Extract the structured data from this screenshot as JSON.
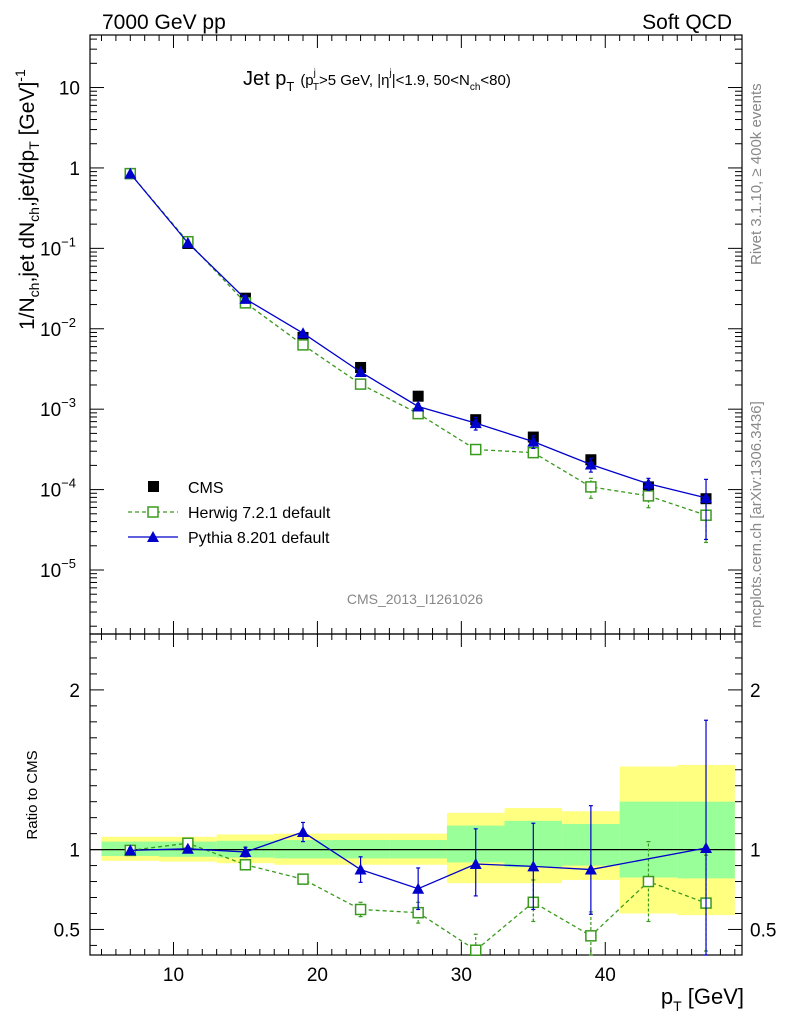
{
  "header": {
    "left_label": "7000 GeV pp",
    "right_label": "Soft QCD"
  },
  "side_labels": {
    "rivet": "Rivet 3.1.10, ≥ 400k events",
    "mcplots": "mcplots.cern.ch [arXiv:1306.3436]"
  },
  "analysis_tag": "CMS_2013_I1261026",
  "chart_data": [
    {
      "type": "scatter",
      "panel": "main",
      "title_parts": {
        "main": "Jet p",
        "main_sub": "T",
        "cut1": "(p",
        "cut1_sup": "j",
        "cut1_sub": "T",
        "cut2": ">5 GeV, |η",
        "cut2_sup": "j",
        "cut3": "|<1.9, 50<N",
        "cut3_sub": "ch",
        "cut4": "<80)"
      },
      "ylabel_parts": {
        "a": "1/N",
        "a_sub": "ch",
        "b": ",jet dN",
        "b_sub": "ch",
        "c": ",jet/dp",
        "c_sub": "T",
        "d": " [GeV]",
        "d_sup": "-1"
      },
      "yscale": "log",
      "xlim": [
        4.2,
        49.5
      ],
      "ylim": [
        1.6e-06,
        45
      ],
      "y_ticks": [
        {
          "v": 10,
          "base": "10",
          "exp": ""
        },
        {
          "v": 1,
          "base": "1",
          "exp": ""
        },
        {
          "v": 0.1,
          "base": "10",
          "exp": "−1"
        },
        {
          "v": 0.01,
          "base": "10",
          "exp": "−2"
        },
        {
          "v": 0.001,
          "base": "10",
          "exp": "−3"
        },
        {
          "v": 0.0001,
          "base": "10",
          "exp": "−4"
        },
        {
          "v": 1e-05,
          "base": "10",
          "exp": "−5"
        }
      ],
      "x": [
        7,
        11,
        15,
        19,
        23,
        27,
        31,
        35,
        39,
        43,
        47
      ],
      "series": [
        {
          "name": "CMS",
          "color": "#000000",
          "marker": "filled-square",
          "y": [
            0.85,
            0.115,
            0.024,
            0.0078,
            0.0033,
            0.00145,
            0.00074,
            0.00045,
            0.000235,
            0.000108,
            7.7e-05
          ]
        },
        {
          "name": "Herwig 7.2.1 default",
          "color": "#3a9a1e",
          "marker": "open-square",
          "line": "dashed",
          "y": [
            0.85,
            0.121,
            0.021,
            0.0063,
            0.00205,
            0.00088,
            0.000315,
            0.000288,
            0.000108,
            8.35e-05,
            4.8e-05
          ],
          "yerr_lo": [
            0,
            0,
            0,
            0,
            0,
            0,
            0,
            0,
            3e-05,
            2.4e-05,
            2.6e-05
          ],
          "yerr_hi": [
            0,
            0,
            0,
            0,
            0,
            0,
            0,
            0,
            3e-05,
            2.4e-05,
            2.6e-05
          ]
        },
        {
          "name": "Pythia 8.201 default",
          "color": "#0000cc",
          "marker": "filled-triangle",
          "line": "solid",
          "y": [
            0.85,
            0.117,
            0.0235,
            0.0088,
            0.0029,
            0.00108,
            0.00067,
            0.000395,
            0.000205,
            0.000118,
            7.9e-05
          ],
          "yerr_lo": [
            0,
            0,
            0,
            0,
            0,
            0.0001,
            0.00012,
            7e-05,
            4e-05,
            2e-05,
            5.5e-05
          ],
          "yerr_hi": [
            0,
            0,
            0,
            0,
            0,
            0.0001,
            0.00012,
            7e-05,
            4e-05,
            2e-05,
            5.5e-05
          ]
        }
      ],
      "legend_position": "lower-left"
    },
    {
      "type": "scatter",
      "panel": "ratio",
      "ylabel": "Ratio to CMS",
      "xlabel_parts": {
        "a": "p",
        "a_sub": "T",
        "b": " [GeV]"
      },
      "yscale": "linear",
      "xlim": [
        4.2,
        49.5
      ],
      "ylim": [
        0.34,
        2.35
      ],
      "x_ticks": [
        10,
        20,
        30,
        40
      ],
      "y_ticks": [
        0.5,
        1,
        2
      ],
      "band_edges": [
        5,
        9,
        13,
        17,
        21,
        25,
        29,
        33,
        37,
        41,
        45,
        49
      ],
      "band_yellow": [
        [
          0.93,
          1.08
        ],
        [
          0.925,
          1.08
        ],
        [
          0.915,
          1.095
        ],
        [
          0.905,
          1.1
        ],
        [
          0.905,
          1.1
        ],
        [
          0.905,
          1.1
        ],
        [
          0.79,
          1.23
        ],
        [
          0.79,
          1.26
        ],
        [
          0.81,
          1.24
        ],
        [
          0.6,
          1.52
        ],
        [
          0.59,
          1.53
        ]
      ],
      "band_green": [
        [
          0.96,
          1.05
        ],
        [
          0.955,
          1.05
        ],
        [
          0.95,
          1.055
        ],
        [
          0.945,
          1.06
        ],
        [
          0.945,
          1.06
        ],
        [
          0.945,
          1.06
        ],
        [
          0.92,
          1.15
        ],
        [
          0.89,
          1.18
        ],
        [
          0.9,
          1.16
        ],
        [
          0.825,
          1.3
        ],
        [
          0.82,
          1.3
        ]
      ],
      "x": [
        7,
        11,
        15,
        19,
        23,
        27,
        31,
        35,
        39,
        43,
        47
      ],
      "series": [
        {
          "name": "Herwig 7.2.1 default",
          "color": "#3a9a1e",
          "marker": "open-square",
          "line": "dashed",
          "y": [
            0.995,
            1.04,
            0.905,
            0.815,
            0.625,
            0.605,
            0.37,
            0.67,
            0.46,
            0.8,
            0.665
          ],
          "yerr_lo": [
            0.015,
            0.015,
            0.015,
            0.02,
            0.045,
            0.065,
            0.08,
            0.12,
            0.15,
            0.25,
            0.3
          ],
          "yerr_hi": [
            0.015,
            0.015,
            0.015,
            0.02,
            0.045,
            0.065,
            0.1,
            0.14,
            0.15,
            0.25,
            0.3
          ]
        },
        {
          "name": "Pythia 8.201 default",
          "color": "#0000cc",
          "marker": "filled-triangle",
          "line": "solid",
          "y": [
            0.995,
            1.005,
            0.985,
            1.11,
            0.875,
            0.755,
            0.91,
            0.895,
            0.875,
            null,
            1.01
          ],
          "yerr_lo": [
            0.015,
            0.015,
            0.03,
            0.06,
            0.08,
            0.13,
            0.2,
            0.27,
            0.28,
            0,
            0.7
          ],
          "yerr_hi": [
            0.015,
            0.015,
            0.03,
            0.06,
            0.08,
            0.13,
            0.22,
            0.27,
            0.4,
            0,
            0.8
          ]
        }
      ],
      "reference_line": 1
    }
  ]
}
